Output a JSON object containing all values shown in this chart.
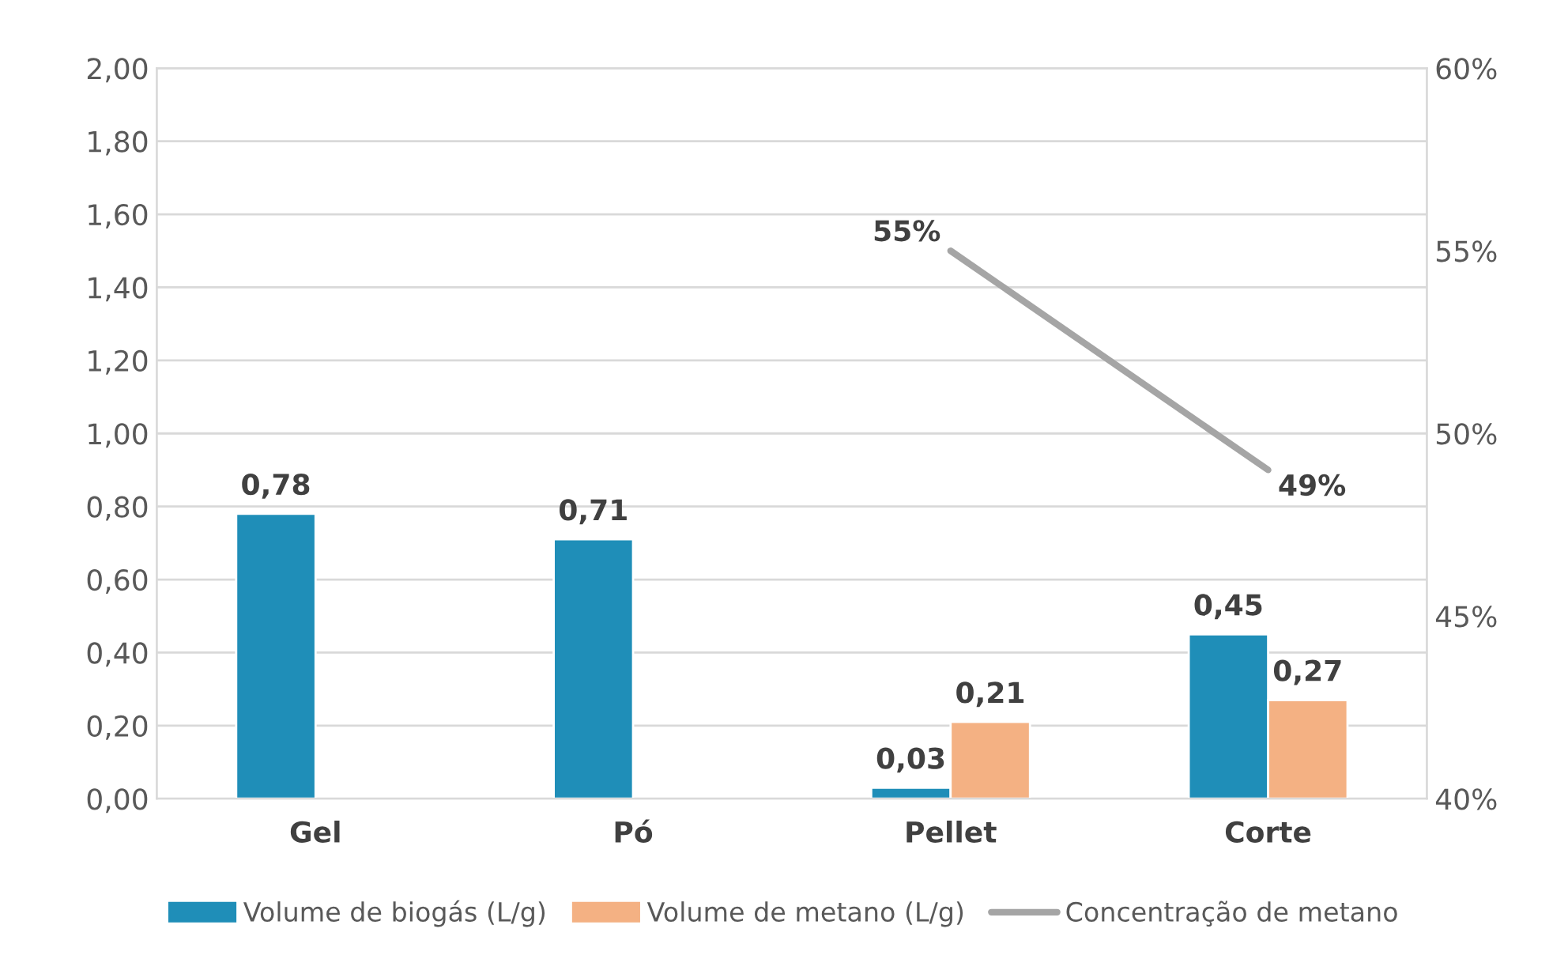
{
  "chart_data": {
    "type": "bar",
    "categories": [
      "Gel",
      "Pó",
      "Pellet",
      "Corte"
    ],
    "series": [
      {
        "name": "Volume de biogás (L/g)",
        "color": "#1f8eb8",
        "values": [
          0.78,
          0.71,
          0.03,
          0.45
        ],
        "value_labels": [
          "0,78",
          "0,71",
          "0,03",
          "0,45"
        ]
      },
      {
        "name": "Volume de metano (L/g)",
        "color": "#f4b183",
        "values": [
          null,
          null,
          0.21,
          0.27
        ],
        "value_labels": [
          null,
          null,
          "0,21",
          "0,27"
        ]
      },
      {
        "name": "Concentração de metano",
        "type": "line",
        "axis": "y2",
        "color": "#a5a5a5",
        "values": [
          null,
          null,
          55,
          49
        ],
        "value_labels": [
          null,
          null,
          "55%",
          "49%"
        ]
      }
    ],
    "ylim": [
      0,
      2
    ],
    "yticks": [
      {
        "value": 0,
        "label": "0,00"
      },
      {
        "value": 0.2,
        "label": "0,20"
      },
      {
        "value": 0.4,
        "label": "0,40"
      },
      {
        "value": 0.6,
        "label": "0,60"
      },
      {
        "value": 0.8,
        "label": "0,80"
      },
      {
        "value": 1.0,
        "label": "1,00"
      },
      {
        "value": 1.2,
        "label": "1,20"
      },
      {
        "value": 1.4,
        "label": "1,40"
      },
      {
        "value": 1.6,
        "label": "1,60"
      },
      {
        "value": 1.8,
        "label": "1,80"
      },
      {
        "value": 2.0,
        "label": "2,00"
      }
    ],
    "y2lim": [
      40,
      60
    ],
    "y2ticks": [
      {
        "value": 40,
        "label": "40%"
      },
      {
        "value": 45,
        "label": "45%"
      },
      {
        "value": 50,
        "label": "50%"
      },
      {
        "value": 55,
        "label": "55%"
      },
      {
        "value": 60,
        "label": "60%"
      }
    ],
    "grid": "y",
    "legend": "bottom",
    "marker": "none",
    "line_style": "solid"
  }
}
